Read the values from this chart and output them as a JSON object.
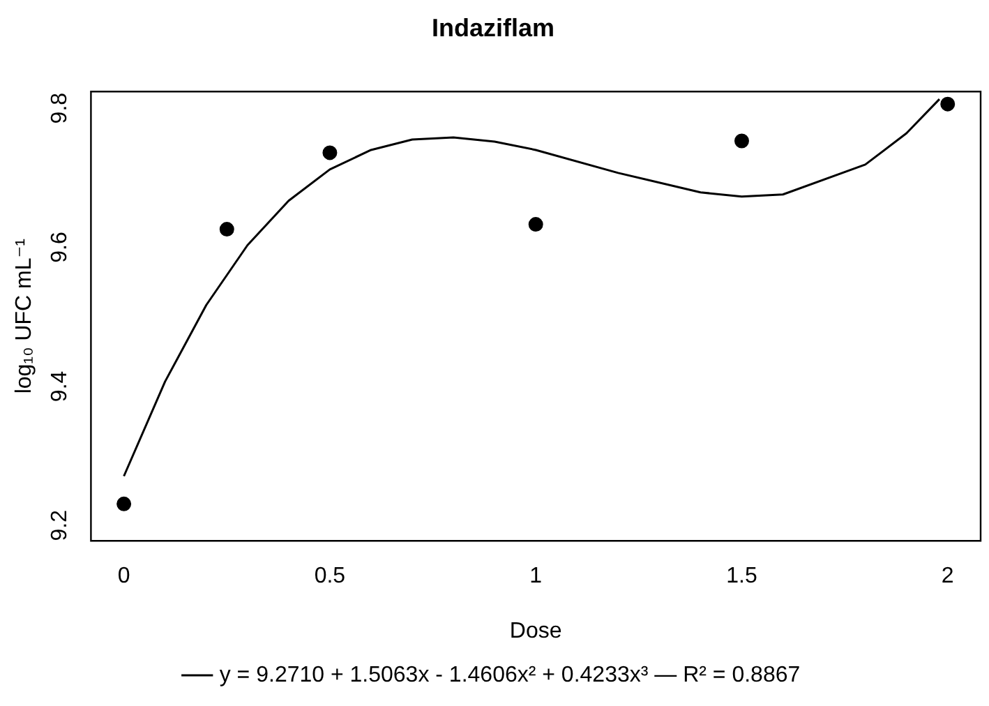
{
  "chart_data": {
    "type": "scatter",
    "title": "Indaziflam",
    "xlabel": "Dose",
    "ylabel": "log₁₀ UFC mL⁻¹",
    "xlim": [
      -0.08,
      2.08
    ],
    "xticks": [
      0,
      0.5,
      1,
      1.5,
      2
    ],
    "ylim": [
      9.178,
      9.824
    ],
    "yticks": [
      9.2,
      9.4,
      9.6,
      9.8
    ],
    "grid": false,
    "legend": "bottom",
    "marker": "circle",
    "series": [
      {
        "color": "#000000",
        "x": [
          0,
          0.25,
          0.5,
          1,
          1.5,
          2
        ],
        "values": [
          9.231,
          9.626,
          9.736,
          9.633,
          9.753,
          9.806
        ]
      },
      {
        "type": "line",
        "name": "y = 9.2710 + 1.5063x - 1.4606x² + 0.4233x³ — R² = 0.8867",
        "color": "#000000",
        "marker": "none",
        "x": [
          0,
          0.1,
          0.2,
          0.3,
          0.4,
          0.5,
          0.6,
          0.7,
          0.8,
          0.9,
          1.0,
          1.2,
          1.4,
          1.5,
          1.6,
          1.8,
          1.9,
          1.98
        ],
        "values": [
          9.271,
          9.407,
          9.517,
          9.603,
          9.667,
          9.712,
          9.74,
          9.755,
          9.758,
          9.752,
          9.74,
          9.707,
          9.679,
          9.673,
          9.676,
          9.719,
          9.764,
          9.813
        ]
      }
    ]
  }
}
